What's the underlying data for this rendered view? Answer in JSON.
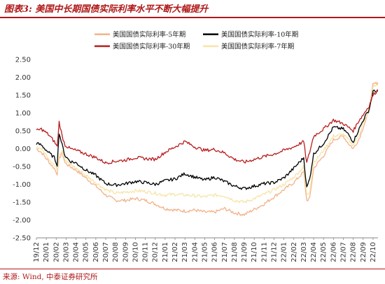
{
  "figure_title": "图表3: 美国中长期国债实际利率水平不断大幅提升",
  "source_text": "来源: Wind, 中泰证券研究所",
  "colors": {
    "s5": "#f2b28a",
    "s10": "#000000",
    "s30": "#b81d1d",
    "s7": "#f7e4a6",
    "accent": "#b01818"
  },
  "chart_data": {
    "type": "line",
    "title": "",
    "xlabel": "",
    "ylabel": "",
    "ylim": [
      -2.5,
      2.5
    ],
    "yticks": [
      "2.50",
      "2.00",
      "1.50",
      "1.00",
      "0.50",
      "0.00",
      "-0.50",
      "-1.00",
      "-1.50",
      "-2.00",
      "-2.50"
    ],
    "xticks": [
      "19/12",
      "20/01",
      "20/02",
      "20/03",
      "20/04",
      "20/05",
      "20/06",
      "20/07",
      "20/08",
      "20/09",
      "20/10",
      "20/11",
      "20/12",
      "21/01",
      "21/02",
      "21/03",
      "21/04",
      "21/05",
      "21/06",
      "21/07",
      "21/08",
      "21/09",
      "21/10",
      "21/11",
      "21/12",
      "22/01",
      "22/02",
      "22/03",
      "22/04",
      "22/05",
      "22/06",
      "22/07",
      "22/08",
      "22/09",
      "22/10"
    ],
    "x_month_start": [
      2019,
      12
    ],
    "legend_position": "top-center",
    "grid": false,
    "series": [
      {
        "name": "美国国债实际利率-5年期",
        "color_key": "s5",
        "points": [
          [
            0,
            0.0
          ],
          [
            0.5,
            -0.1
          ],
          [
            1.2,
            -0.35
          ],
          [
            1.8,
            -0.55
          ],
          [
            2.1,
            -0.7
          ],
          [
            2.3,
            -0.28
          ],
          [
            2.6,
            -0.1
          ],
          [
            2.9,
            -0.4
          ],
          [
            3.4,
            -0.5
          ],
          [
            4,
            -0.6
          ],
          [
            5,
            -0.82
          ],
          [
            6,
            -1.05
          ],
          [
            7,
            -1.3
          ],
          [
            8,
            -1.45
          ],
          [
            9,
            -1.45
          ],
          [
            10,
            -1.4
          ],
          [
            11,
            -1.45
          ],
          [
            12,
            -1.55
          ],
          [
            13,
            -1.68
          ],
          [
            14,
            -1.72
          ],
          [
            15,
            -1.75
          ],
          [
            16,
            -1.72
          ],
          [
            17,
            -1.78
          ],
          [
            18,
            -1.78
          ],
          [
            19,
            -1.68
          ],
          [
            20,
            -1.8
          ],
          [
            21,
            -1.85
          ],
          [
            22,
            -1.7
          ],
          [
            23,
            -1.55
          ],
          [
            24,
            -1.35
          ],
          [
            25,
            -1.15
          ],
          [
            26,
            -0.95
          ],
          [
            27,
            -0.65
          ],
          [
            27.3,
            -1.45
          ],
          [
            27.6,
            -1.4
          ],
          [
            28,
            -0.55
          ],
          [
            29,
            -0.2
          ],
          [
            30,
            0.25
          ],
          [
            31,
            0.35
          ],
          [
            31.5,
            0.15
          ],
          [
            32,
            0.0
          ],
          [
            32.6,
            0.28
          ],
          [
            33,
            0.6
          ],
          [
            33.6,
            1.05
          ],
          [
            34,
            1.8
          ],
          [
            34.5,
            1.85
          ]
        ]
      },
      {
        "name": "美国国债实际利率-10年期",
        "color_key": "s10",
        "points": [
          [
            0,
            0.15
          ],
          [
            0.5,
            0.1
          ],
          [
            1.2,
            -0.1
          ],
          [
            1.8,
            -0.25
          ],
          [
            2.1,
            -0.45
          ],
          [
            2.3,
            0.45
          ],
          [
            2.6,
            0.1
          ],
          [
            2.9,
            -0.2
          ],
          [
            3.4,
            -0.35
          ],
          [
            4,
            -0.4
          ],
          [
            5,
            -0.6
          ],
          [
            6,
            -0.75
          ],
          [
            7,
            -0.98
          ],
          [
            8,
            -1.02
          ],
          [
            9,
            -0.98
          ],
          [
            10,
            -0.92
          ],
          [
            11,
            -0.95
          ],
          [
            12,
            -1.0
          ],
          [
            13,
            -0.9
          ],
          [
            14,
            -0.85
          ],
          [
            15,
            -0.7
          ],
          [
            16,
            -0.8
          ],
          [
            17,
            -0.88
          ],
          [
            18,
            -0.8
          ],
          [
            19,
            -0.92
          ],
          [
            20,
            -1.05
          ],
          [
            21,
            -1.12
          ],
          [
            22,
            -1.05
          ],
          [
            23,
            -0.98
          ],
          [
            24,
            -0.95
          ],
          [
            25,
            -0.82
          ],
          [
            26,
            -0.55
          ],
          [
            27,
            -0.25
          ],
          [
            27.3,
            -1.1
          ],
          [
            27.6,
            -0.85
          ],
          [
            28,
            -0.15
          ],
          [
            29,
            0.15
          ],
          [
            30,
            0.6
          ],
          [
            31,
            0.55
          ],
          [
            31.5,
            0.4
          ],
          [
            32,
            0.2
          ],
          [
            32.6,
            0.55
          ],
          [
            33,
            0.8
          ],
          [
            33.6,
            1.1
          ],
          [
            34,
            1.6
          ],
          [
            34.5,
            1.62
          ]
        ]
      },
      {
        "name": "美国国债实际利率-30年期",
        "color_key": "s30",
        "points": [
          [
            0,
            0.5
          ],
          [
            0.5,
            0.55
          ],
          [
            1.2,
            0.4
          ],
          [
            1.8,
            0.2
          ],
          [
            2.1,
            0.05
          ],
          [
            2.3,
            0.75
          ],
          [
            2.6,
            0.35
          ],
          [
            2.9,
            0.1
          ],
          [
            3.4,
            0.0
          ],
          [
            4,
            -0.05
          ],
          [
            5,
            -0.15
          ],
          [
            6,
            -0.25
          ],
          [
            7,
            -0.4
          ],
          [
            8,
            -0.35
          ],
          [
            9,
            -0.32
          ],
          [
            10,
            -0.25
          ],
          [
            11,
            -0.28
          ],
          [
            12,
            -0.3
          ],
          [
            13,
            -0.1
          ],
          [
            14,
            0.05
          ],
          [
            15,
            0.2
          ],
          [
            16,
            0.05
          ],
          [
            17,
            -0.05
          ],
          [
            18,
            -0.02
          ],
          [
            19,
            -0.12
          ],
          [
            20,
            -0.3
          ],
          [
            21,
            -0.38
          ],
          [
            22,
            -0.3
          ],
          [
            23,
            -0.22
          ],
          [
            24,
            -0.15
          ],
          [
            25,
            -0.05
          ],
          [
            26,
            0.05
          ],
          [
            27,
            0.2
          ],
          [
            27.3,
            -0.4
          ],
          [
            27.6,
            -0.1
          ],
          [
            28,
            0.35
          ],
          [
            29,
            0.55
          ],
          [
            30,
            0.8
          ],
          [
            31,
            0.7
          ],
          [
            31.5,
            0.6
          ],
          [
            32,
            0.5
          ],
          [
            32.6,
            0.8
          ],
          [
            33,
            0.95
          ],
          [
            33.6,
            1.2
          ],
          [
            34,
            1.5
          ],
          [
            34.5,
            1.65
          ]
        ]
      },
      {
        "name": "美国国债实际利率-7年期",
        "color_key": "s7",
        "points": [
          [
            0,
            0.05
          ],
          [
            0.5,
            0.0
          ],
          [
            1.2,
            -0.25
          ],
          [
            1.8,
            -0.45
          ],
          [
            2.1,
            -0.6
          ],
          [
            2.3,
            -0.15
          ],
          [
            2.6,
            -0.05
          ],
          [
            2.9,
            -0.3
          ],
          [
            3.4,
            -0.45
          ],
          [
            4,
            -0.55
          ],
          [
            5,
            -0.75
          ],
          [
            6,
            -0.95
          ],
          [
            7,
            -1.15
          ],
          [
            8,
            -1.25
          ],
          [
            9,
            -1.22
          ],
          [
            10,
            -1.18
          ],
          [
            11,
            -1.2
          ],
          [
            12,
            -1.25
          ],
          [
            13,
            -1.3
          ],
          [
            14,
            -1.28
          ],
          [
            15,
            -1.3
          ],
          [
            16,
            -1.32
          ],
          [
            17,
            -1.35
          ],
          [
            18,
            -1.3
          ],
          [
            19,
            -1.32
          ],
          [
            20,
            -1.45
          ],
          [
            21,
            -1.5
          ],
          [
            22,
            -1.4
          ],
          [
            23,
            -1.28
          ],
          [
            24,
            -1.15
          ],
          [
            25,
            -1.0
          ],
          [
            26,
            -0.8
          ],
          [
            27,
            -0.5
          ],
          [
            27.3,
            -1.3
          ],
          [
            27.6,
            -1.2
          ],
          [
            28,
            -0.4
          ],
          [
            29,
            -0.05
          ],
          [
            30,
            0.35
          ],
          [
            31,
            0.4
          ],
          [
            31.5,
            0.25
          ],
          [
            32,
            0.1
          ],
          [
            32.6,
            0.4
          ],
          [
            33,
            0.7
          ],
          [
            33.6,
            1.05
          ],
          [
            34,
            1.75
          ],
          [
            34.5,
            1.78
          ]
        ]
      }
    ]
  }
}
